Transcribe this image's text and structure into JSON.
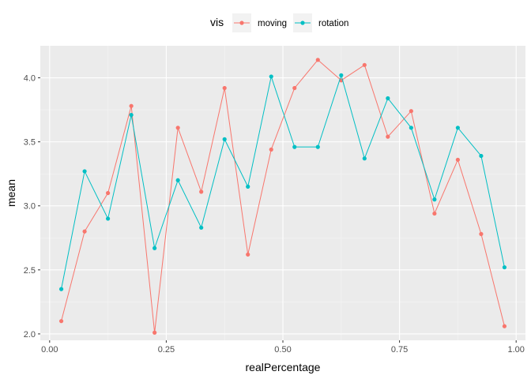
{
  "chart_data": {
    "type": "line",
    "xlabel": "realPercentage",
    "ylabel": "mean",
    "xlim": [
      -0.02,
      1.02
    ],
    "ylim": [
      1.95,
      4.25
    ],
    "xticks": [
      0.0,
      0.25,
      0.5,
      0.75,
      1.0
    ],
    "xtick_labels": [
      "0.00",
      "0.25",
      "0.50",
      "0.75",
      "1.00"
    ],
    "yticks": [
      2.0,
      2.5,
      3.0,
      3.5,
      4.0
    ],
    "ytick_labels": [
      "2.0",
      "2.5",
      "3.0",
      "3.5",
      "4.0"
    ],
    "grid": true,
    "legend": {
      "title": "vis",
      "position": "top"
    },
    "x": [
      0.025,
      0.075,
      0.125,
      0.175,
      0.225,
      0.275,
      0.325,
      0.375,
      0.425,
      0.475,
      0.525,
      0.575,
      0.625,
      0.675,
      0.725,
      0.775,
      0.825,
      0.875,
      0.925,
      0.975
    ],
    "series": [
      {
        "name": "moving",
        "color": "#F8766D",
        "values": [
          2.1,
          2.8,
          3.1,
          3.78,
          2.01,
          3.61,
          3.11,
          3.92,
          2.62,
          3.44,
          3.92,
          4.14,
          3.98,
          4.1,
          3.54,
          3.74,
          2.94,
          3.36,
          2.78,
          2.06
        ]
      },
      {
        "name": "rotation",
        "color": "#00BFC4",
        "values": [
          2.35,
          3.27,
          2.9,
          3.71,
          2.67,
          3.2,
          2.83,
          3.52,
          3.15,
          4.01,
          3.46,
          3.46,
          4.02,
          3.37,
          3.84,
          3.61,
          3.05,
          3.61,
          3.39,
          2.52
        ]
      }
    ]
  }
}
